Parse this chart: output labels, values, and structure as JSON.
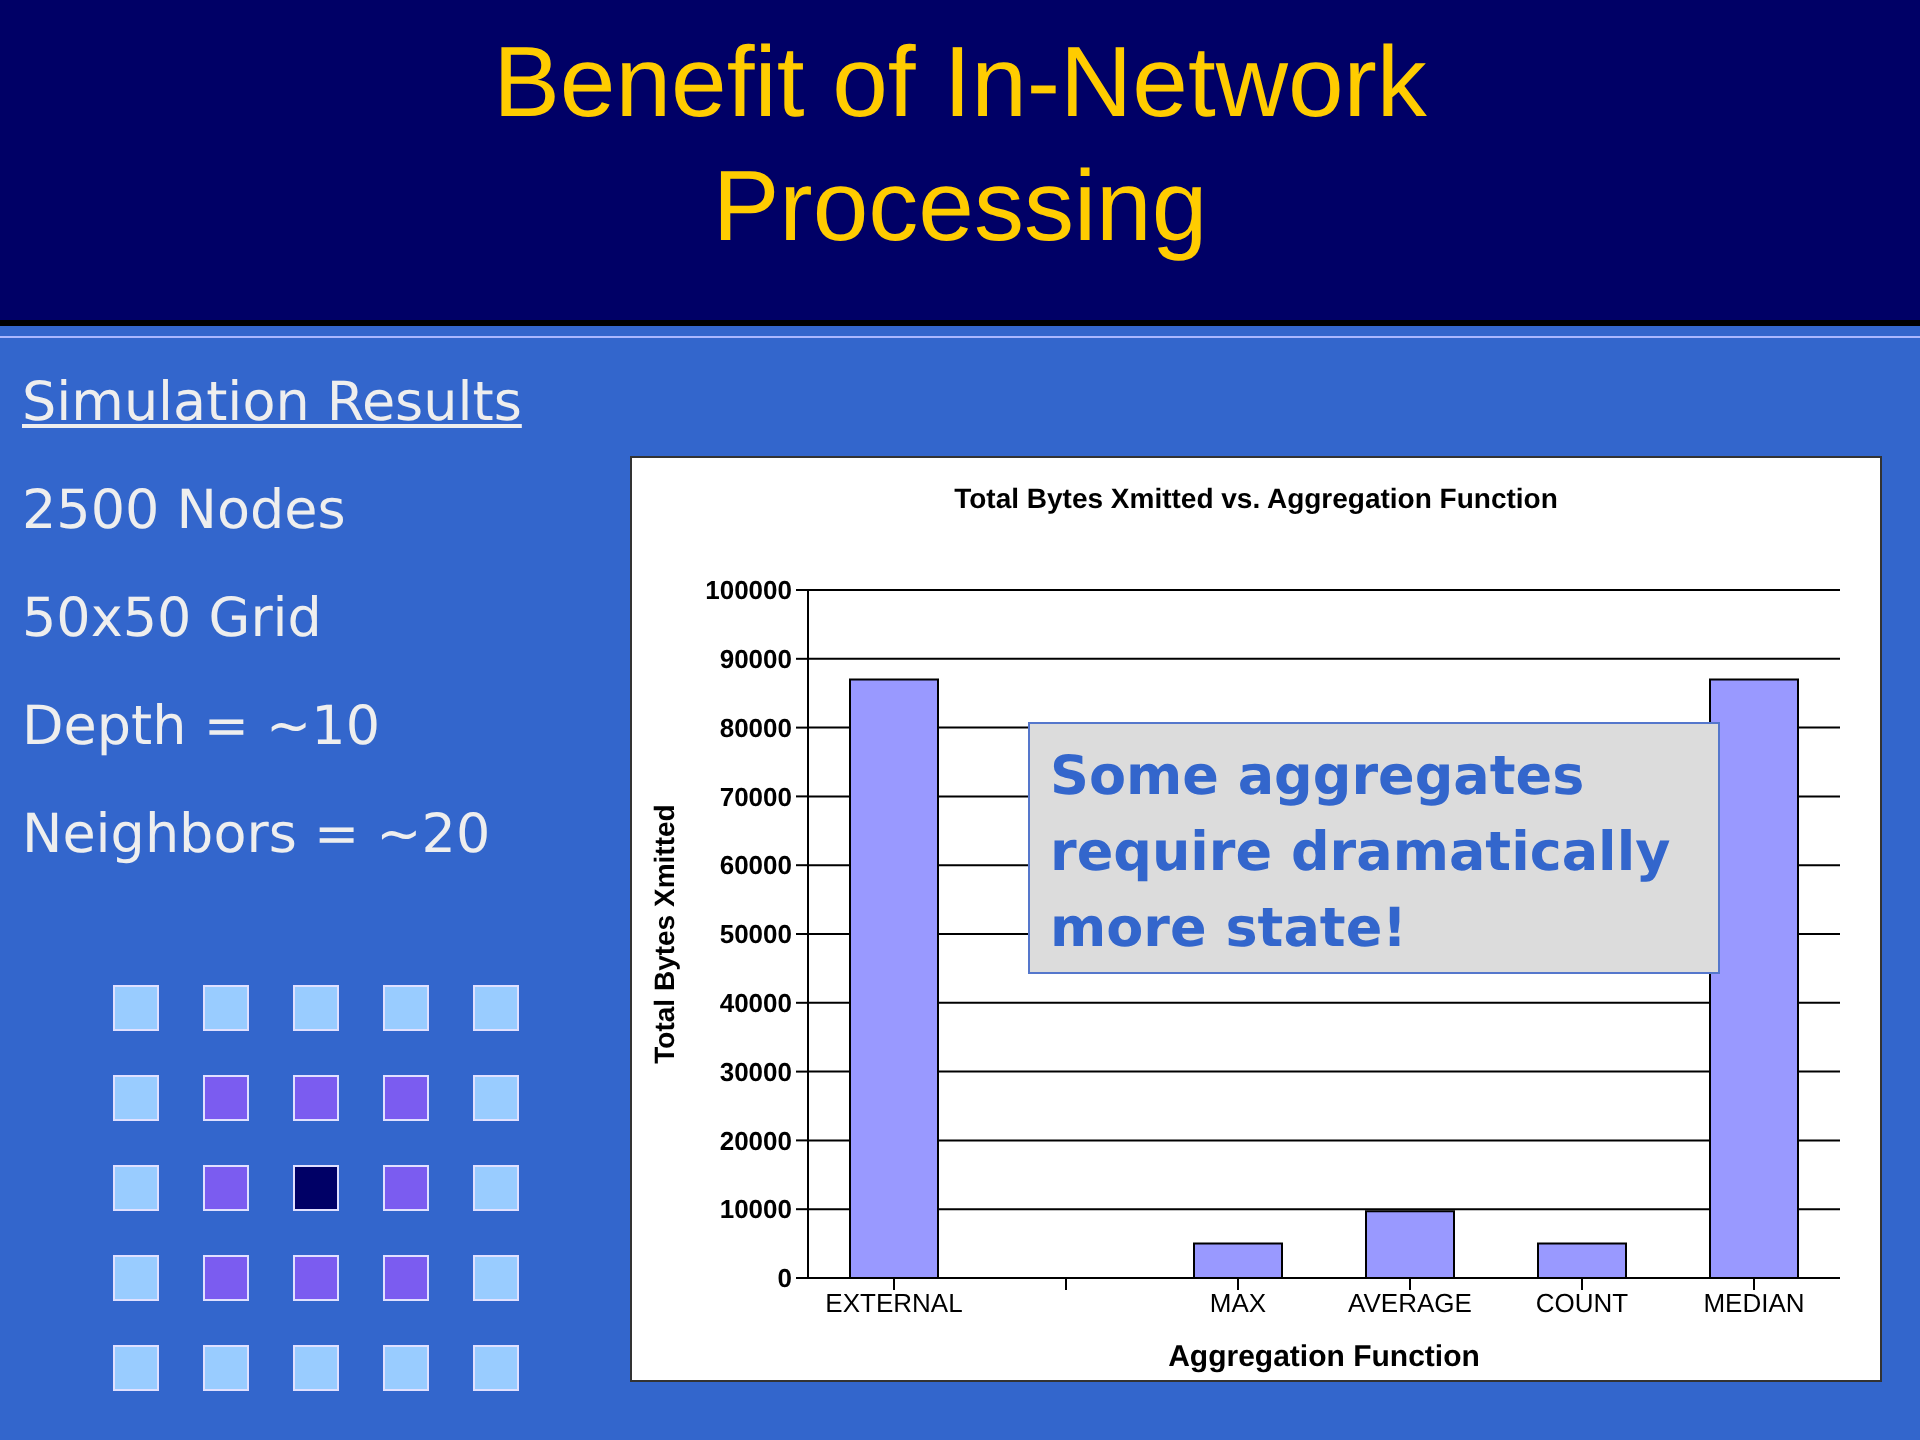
{
  "chart_data": {
    "type": "bar",
    "title": "Benefit of In-Network Processing",
    "subtitle": "Total Bytes Xmitted vs. Aggregation Function",
    "xlabel": "Aggregation Function",
    "ylabel": "Total Bytes Xmitted",
    "categories": [
      "EXTERNAL",
      null,
      "MAX",
      "AVERAGE",
      "COUNT",
      "MEDIAN"
    ],
    "values": [
      87000,
      null,
      5000,
      9700,
      5000,
      87000
    ],
    "color": "#9999ff",
    "ylim": [
      0,
      100000
    ],
    "yticks": [
      0,
      10000,
      20000,
      30000,
      40000,
      50000,
      60000,
      70000,
      80000,
      90000,
      100000
    ],
    "grid": "y",
    "legend": false,
    "annotations": [
      "Simulation Results",
      "2500 Nodes",
      "50x50 Grid",
      "Depth = ~10",
      "Neighbors = ~20",
      "Some aggregates require dramatically more state!"
    ]
  }
}
